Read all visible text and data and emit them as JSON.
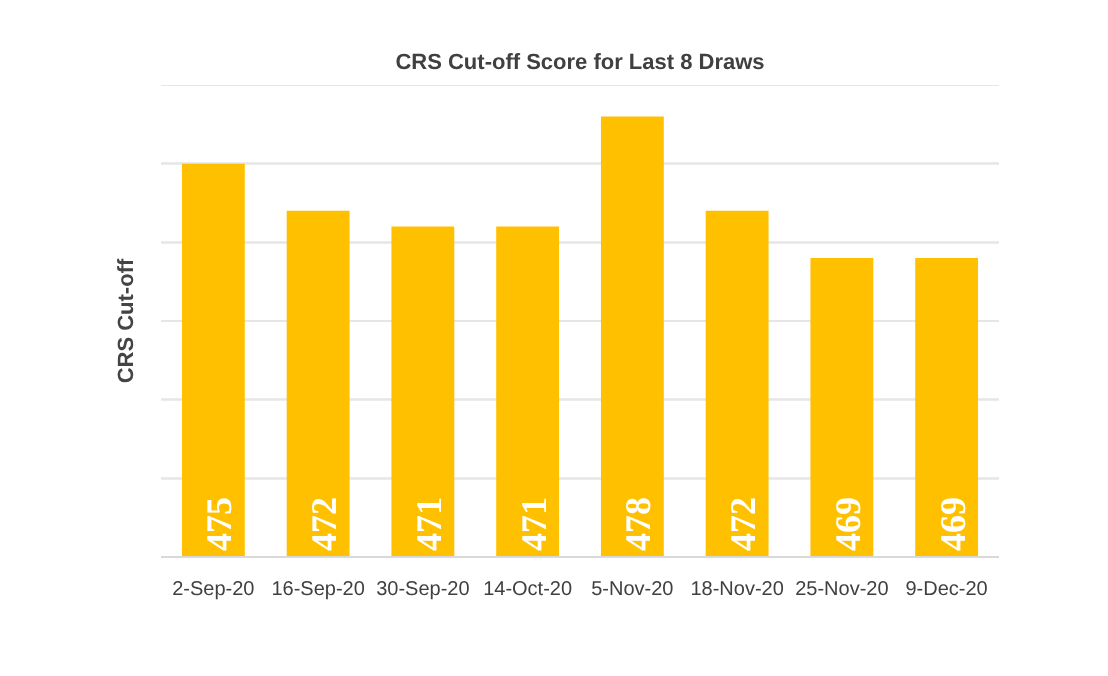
{
  "chart_data": {
    "type": "bar",
    "title": "CRS Cut-off Score for Last 8 Draws",
    "ylabel": "CRS Cut-off",
    "categories": [
      "2-Sep-20",
      "16-Sep-20",
      "30-Sep-20",
      "14-Oct-20",
      "5-Nov-20",
      "18-Nov-20",
      "25-Nov-20",
      "9-Dec-20"
    ],
    "values": [
      475,
      472,
      471,
      471,
      478,
      472,
      469,
      469
    ],
    "color": "#ffc000",
    "data_labels": true,
    "ylim": [
      450,
      480
    ],
    "yticks": [
      {
        "value": 450,
        "label": null
      },
      {
        "value": 455,
        "label": null
      },
      {
        "value": 460,
        "label": null
      },
      {
        "value": 465,
        "label": null
      },
      {
        "value": 470,
        "label": null
      },
      {
        "value": 475,
        "label": null
      },
      {
        "value": 480,
        "label": null
      }
    ],
    "grid": "y",
    "tick_labels": "x"
  }
}
